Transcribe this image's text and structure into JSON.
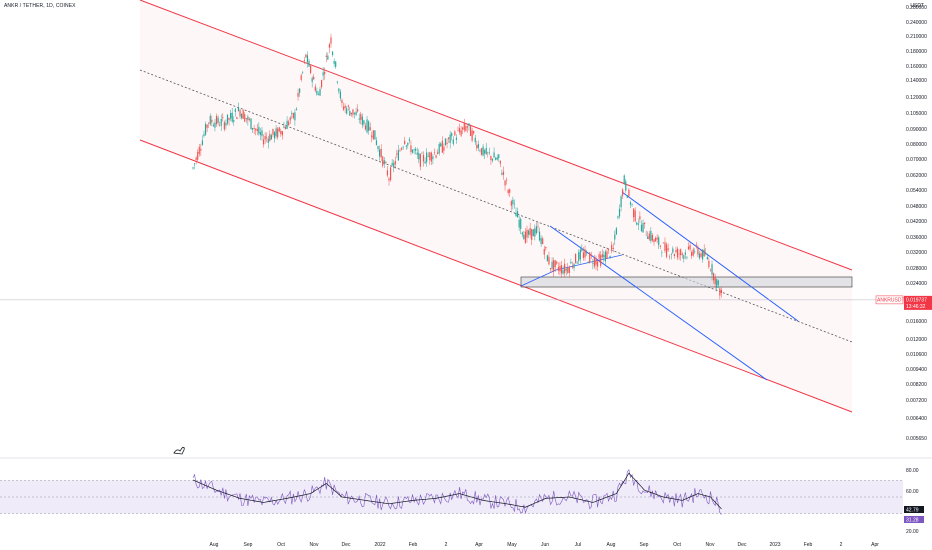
{
  "header": {
    "symbol_line": "ANKR / TETHER, 1D, COINEX"
  },
  "price_axis": {
    "unit_label": "USDT",
    "ticks": [
      "0.280000",
      "0.240000",
      "0.210000",
      "0.180000",
      "0.160000",
      "0.140000",
      "0.120000",
      "0.105000",
      "0.090000",
      "0.080000",
      "0.070000",
      "0.062000",
      "0.054000",
      "0.048000",
      "0.042000",
      "0.036000",
      "0.032000",
      "0.028000",
      "0.024000",
      "0.021000",
      "0.016000",
      "0.012000",
      "0.010600",
      "0.009400",
      "0.008200",
      "0.007200",
      "0.006400",
      "0.005650"
    ]
  },
  "price_tag": {
    "symbol": "ANKRUSDT",
    "price": "0.019737",
    "countdown": "13:46:32",
    "color": "#f23645"
  },
  "rsi": {
    "ticks": [
      "80.00",
      "60.00",
      "20.00"
    ],
    "value_1": "42.79",
    "value_2": "31.28"
  },
  "time_axis": {
    "labels": [
      "Aug",
      "Sep",
      "Oct",
      "Nov",
      "Dec",
      "2022",
      "Feb",
      "2",
      "Apr",
      "May",
      "Jun",
      "Jul",
      "Aug",
      "Sep",
      "Oct",
      "Nov",
      "Dec",
      "2023",
      "Feb",
      "2",
      "Apr"
    ]
  },
  "colors": {
    "up": "#26a69a",
    "down": "#ef5350",
    "channel": "#f23645",
    "wedge": "#2962ff",
    "rsi": "#7e57c2",
    "box": "#d1d4dc"
  },
  "chart_data": {
    "type": "candlestick",
    "log_scale": true,
    "x_unit": "days",
    "series": [
      {
        "values": [
          [
            0,
            0.065
          ],
          [
            10,
            0.1
          ],
          [
            20,
            0.098
          ],
          [
            30,
            0.11
          ],
          [
            45,
            0.085
          ],
          [
            55,
            0.09
          ],
          [
            65,
            0.105
          ],
          [
            72,
            0.18
          ],
          [
            80,
            0.125
          ],
          [
            88,
            0.21
          ],
          [
            95,
            0.115
          ],
          [
            105,
            0.105
          ],
          [
            115,
            0.09
          ],
          [
            125,
            0.06
          ],
          [
            135,
            0.085
          ],
          [
            145,
            0.07
          ],
          [
            155,
            0.075
          ],
          [
            165,
            0.085
          ],
          [
            175,
            0.095
          ],
          [
            185,
            0.075
          ],
          [
            195,
            0.07
          ],
          [
            205,
            0.045
          ],
          [
            212,
            0.035
          ],
          [
            220,
            0.037
          ],
          [
            228,
            0.027
          ],
          [
            238,
            0.026
          ],
          [
            248,
            0.03
          ],
          [
            258,
            0.028
          ],
          [
            268,
            0.031
          ],
          [
            275,
            0.058
          ],
          [
            282,
            0.042
          ],
          [
            292,
            0.035
          ],
          [
            302,
            0.031
          ],
          [
            312,
            0.03
          ],
          [
            320,
            0.031
          ],
          [
            328,
            0.029
          ],
          [
            338,
            0.02
          ]
        ]
      }
    ],
    "rsi_values": [
      [
        0,
        75
      ],
      [
        15,
        60
      ],
      [
        30,
        48
      ],
      [
        45,
        42
      ],
      [
        60,
        48
      ],
      [
        75,
        55
      ],
      [
        85,
        70
      ],
      [
        95,
        50
      ],
      [
        110,
        45
      ],
      [
        125,
        40
      ],
      [
        140,
        45
      ],
      [
        155,
        48
      ],
      [
        170,
        55
      ],
      [
        185,
        45
      ],
      [
        200,
        40
      ],
      [
        212,
        35
      ],
      [
        225,
        48
      ],
      [
        240,
        50
      ],
      [
        255,
        42
      ],
      [
        270,
        55
      ],
      [
        278,
        85
      ],
      [
        288,
        60
      ],
      [
        300,
        50
      ],
      [
        312,
        45
      ],
      [
        322,
        55
      ],
      [
        330,
        50
      ],
      [
        338,
        30
      ]
    ],
    "ylim": [
      0.00565,
      0.28
    ]
  }
}
